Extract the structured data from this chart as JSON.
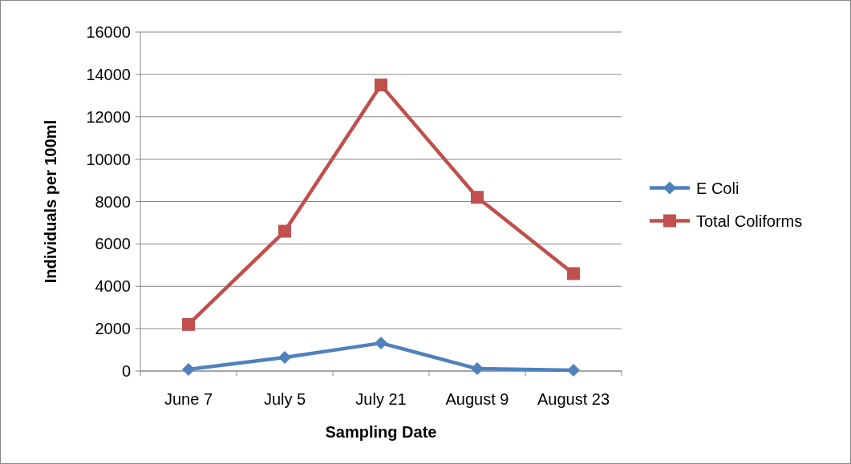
{
  "chart_data": {
    "type": "line",
    "xlabel": "Sampling Date",
    "ylabel": "Individuals per 100ml",
    "categories": [
      "June 7",
      "July 5",
      "July 21",
      "August 9",
      "August 23"
    ],
    "series": [
      {
        "name": "E Coli",
        "color": "#4f81bd",
        "marker": "diamond",
        "values": [
          80,
          640,
          1320,
          110,
          40
        ]
      },
      {
        "name": "Total Coliforms",
        "color": "#c0504d",
        "marker": "square",
        "values": [
          2200,
          6600,
          13500,
          8200,
          4600
        ]
      }
    ],
    "ylim": [
      0,
      16000
    ],
    "yticks": [
      0,
      2000,
      4000,
      6000,
      8000,
      10000,
      12000,
      14000,
      16000
    ],
    "grid": "y",
    "legend": "right",
    "line_style": "solid"
  }
}
